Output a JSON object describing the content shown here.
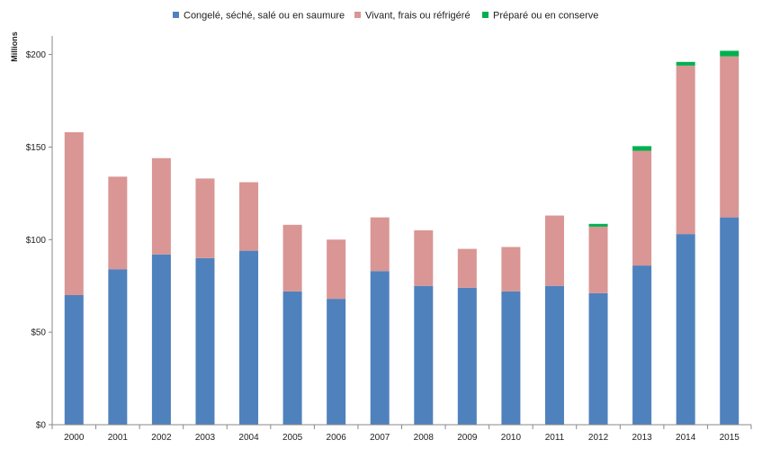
{
  "chart_data": {
    "type": "bar",
    "stacked": true,
    "title": "",
    "ylabel": "Millions",
    "xlabel": "",
    "ylim": [
      0,
      210
    ],
    "yticks": [
      0,
      50,
      100,
      150,
      200
    ],
    "ytick_labels": [
      "$0",
      "$50",
      "$100",
      "$150",
      "$200"
    ],
    "grid": false,
    "legend_position": "top-center",
    "categories": [
      "2000",
      "2001",
      "2002",
      "2003",
      "2004",
      "2005",
      "2006",
      "2007",
      "2008",
      "2009",
      "2010",
      "2011",
      "2012",
      "2013",
      "2014",
      "2015"
    ],
    "series": [
      {
        "name": "Congelé, séché, salé ou en saumure",
        "color": "#4f81bd",
        "values": [
          70,
          84,
          92,
          90,
          94,
          72,
          68,
          83,
          75,
          74,
          72,
          75,
          71,
          86,
          103,
          112
        ]
      },
      {
        "name": "Vivant, frais ou réfrigéré",
        "color": "#d99694",
        "values": [
          88,
          50,
          52,
          43,
          37,
          36,
          32,
          29,
          30,
          21,
          24,
          38,
          36,
          62,
          91,
          87
        ]
      },
      {
        "name": "Préparé ou en conserve",
        "color": "#00b050",
        "values": [
          0,
          0,
          0,
          0,
          0,
          0,
          0,
          0,
          0,
          0,
          0,
          0,
          1.5,
          2.5,
          2,
          3
        ]
      }
    ]
  }
}
